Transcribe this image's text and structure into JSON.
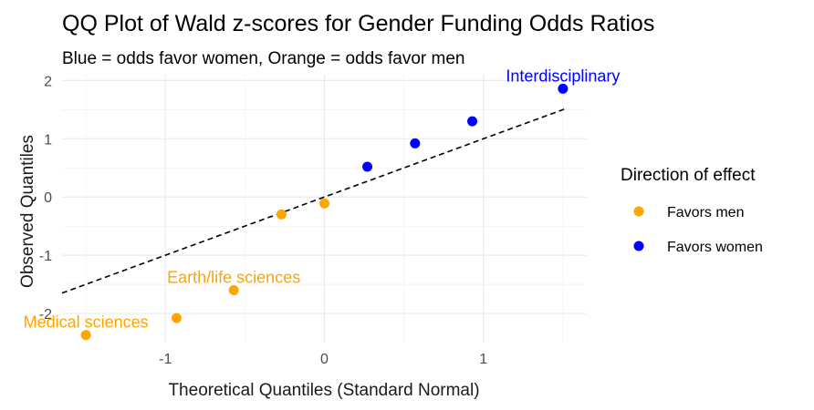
{
  "chart_data": {
    "type": "scatter",
    "title": "QQ Plot of Wald z-scores for Gender Funding Odds Ratios",
    "subtitle": "Blue = odds favor women, Orange = odds favor men",
    "xlabel": "Theoretical Quantiles (Standard Normal)",
    "ylabel": "Observed Quantiles",
    "xlim": [
      -1.65,
      1.65
    ],
    "ylim": [
      -2.5,
      2.1
    ],
    "x_ticks": [
      -1,
      0,
      1
    ],
    "y_ticks": [
      -2,
      -1,
      0,
      1,
      2
    ],
    "x_tick_labels": [
      "-1",
      "0",
      "1"
    ],
    "y_tick_labels": [
      "-2",
      "-1",
      "0",
      "1",
      "2"
    ],
    "grid": true,
    "legend": {
      "title": "Direction of effect",
      "placement": "right",
      "entries": [
        {
          "label": "Favors men",
          "color": "#FFA500"
        },
        {
          "label": "Favors women",
          "color": "#0000FF"
        }
      ]
    },
    "reference_line": {
      "style": "dashed",
      "color": "#000000",
      "intercept": 0.0,
      "slope": 1.0
    },
    "series": [
      {
        "name": "Favors men",
        "color": "#FFA500",
        "points": [
          {
            "x": -1.5,
            "y": -2.37
          },
          {
            "x": -0.93,
            "y": -2.08
          },
          {
            "x": -0.57,
            "y": -1.6
          },
          {
            "x": -0.27,
            "y": -0.3
          },
          {
            "x": 0.0,
            "y": -0.11
          }
        ]
      },
      {
        "name": "Favors women",
        "color": "#0000FF",
        "points": [
          {
            "x": 0.27,
            "y": 0.52
          },
          {
            "x": 0.57,
            "y": 0.92
          },
          {
            "x": 0.93,
            "y": 1.3
          },
          {
            "x": 1.5,
            "y": 1.86
          }
        ]
      }
    ],
    "annotations": [
      {
        "text": "Interdisciplinary",
        "x": 1.5,
        "y": 1.86,
        "color": "#0000FF"
      },
      {
        "text": "Earth/life sciences",
        "x": -0.57,
        "y": -1.6,
        "color": "#FFA500"
      },
      {
        "text": "Medical sciences",
        "x": -1.5,
        "y": -2.37,
        "color": "#FFA500"
      }
    ]
  }
}
